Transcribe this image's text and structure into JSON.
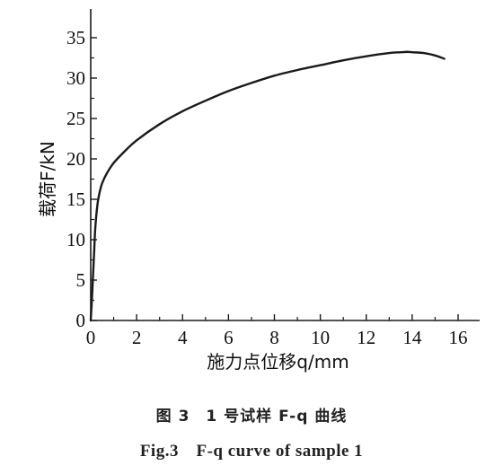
{
  "chart_data": {
    "type": "line",
    "xlabel": "施力点位移q/mm",
    "ylabel": "载荷F/kN",
    "xlim": [
      0,
      16
    ],
    "ylim": [
      0,
      35
    ],
    "xticks": [
      0,
      2,
      4,
      6,
      8,
      10,
      12,
      14,
      16
    ],
    "yticks": [
      0,
      5,
      10,
      15,
      20,
      25,
      30,
      35
    ],
    "xtick_labels": [
      "0",
      "2",
      "4",
      "6",
      "8",
      "10",
      "12",
      "14",
      "16"
    ],
    "ytick_labels": [
      "0",
      "5",
      "10",
      "15",
      "20",
      "25",
      "30",
      "35"
    ],
    "grid": false,
    "legend": "none",
    "line_color": "#1a1a1a",
    "series": [
      {
        "x": [
          0,
          0.05,
          0.1,
          0.15,
          0.2,
          0.3,
          0.4,
          0.5,
          0.7,
          1.0,
          1.5,
          2.0,
          3.0,
          4.0,
          5.0,
          6.0,
          7.0,
          8.0,
          9.0,
          10.0,
          11.0,
          12.0,
          13.0,
          13.5,
          13.8,
          14.0,
          14.5,
          15.0,
          15.4
        ],
        "y": [
          0,
          2.5,
          5.5,
          8.5,
          11.5,
          14.5,
          16.0,
          17.0,
          18.2,
          19.5,
          21.0,
          22.3,
          24.3,
          25.9,
          27.2,
          28.4,
          29.4,
          30.3,
          31.0,
          31.6,
          32.2,
          32.7,
          33.1,
          33.2,
          33.25,
          33.2,
          33.1,
          32.8,
          32.4
        ]
      }
    ]
  },
  "captions": {
    "cn": "图 3　1 号试样 F-q 曲线",
    "en": "Fig.3　F-q curve of sample 1"
  }
}
